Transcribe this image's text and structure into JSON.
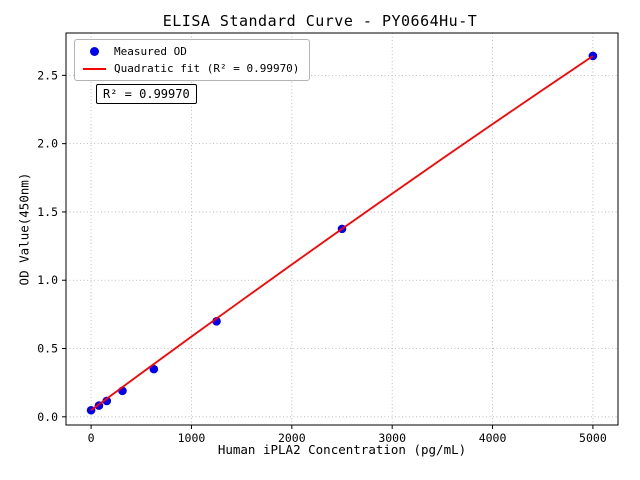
{
  "figure": {
    "title": "ELISA Standard Curve - PY0664Hu-T",
    "xlabel": "Human iPLA2 Concentration (pg/mL)",
    "ylabel": "OD Value(450nm)",
    "annotation_r2": "R² = 0.99970"
  },
  "legend": {
    "items": [
      {
        "label": "Measured OD",
        "marker": "dot",
        "color": "#0000ee"
      },
      {
        "label": "Quadratic fit (R² = 0.99970)",
        "marker": "line",
        "color": "#ff0000"
      }
    ]
  },
  "chart_data": {
    "type": "scatter",
    "title": "ELISA Standard Curve - PY0664Hu-T",
    "xlabel": "Human iPLA2 Concentration (pg/mL)",
    "ylabel": "OD Value(450nm)",
    "xlim": [
      -250,
      5250
    ],
    "ylim": [
      -0.06,
      2.81
    ],
    "xticks": [
      0,
      1000,
      2000,
      3000,
      4000,
      5000
    ],
    "yticks": [
      0.0,
      0.5,
      1.0,
      1.5,
      2.0,
      2.5
    ],
    "grid": true,
    "grid_style": "dotted",
    "r_squared": "0.99970",
    "series": [
      {
        "name": "Measured OD",
        "type": "scatter",
        "color": "#0000ee",
        "points": [
          [
            0,
            0.048
          ],
          [
            78.13,
            0.082
          ],
          [
            156.25,
            0.116
          ],
          [
            312.5,
            0.19
          ],
          [
            625,
            0.349
          ],
          [
            1250,
            0.699
          ],
          [
            2500,
            1.376
          ],
          [
            5000,
            2.642
          ]
        ]
      },
      {
        "name": "Quadratic fit (R² = 0.99970)",
        "type": "line",
        "color": "#ff0000",
        "points": [
          [
            0,
            0.048
          ],
          [
            500,
            0.319
          ],
          [
            1000,
            0.587
          ],
          [
            1500,
            0.852
          ],
          [
            2000,
            1.115
          ],
          [
            2500,
            1.376
          ],
          [
            3000,
            1.634
          ],
          [
            3500,
            1.89
          ],
          [
            4000,
            2.143
          ],
          [
            4500,
            2.394
          ],
          [
            5000,
            2.642
          ]
        ]
      }
    ]
  }
}
